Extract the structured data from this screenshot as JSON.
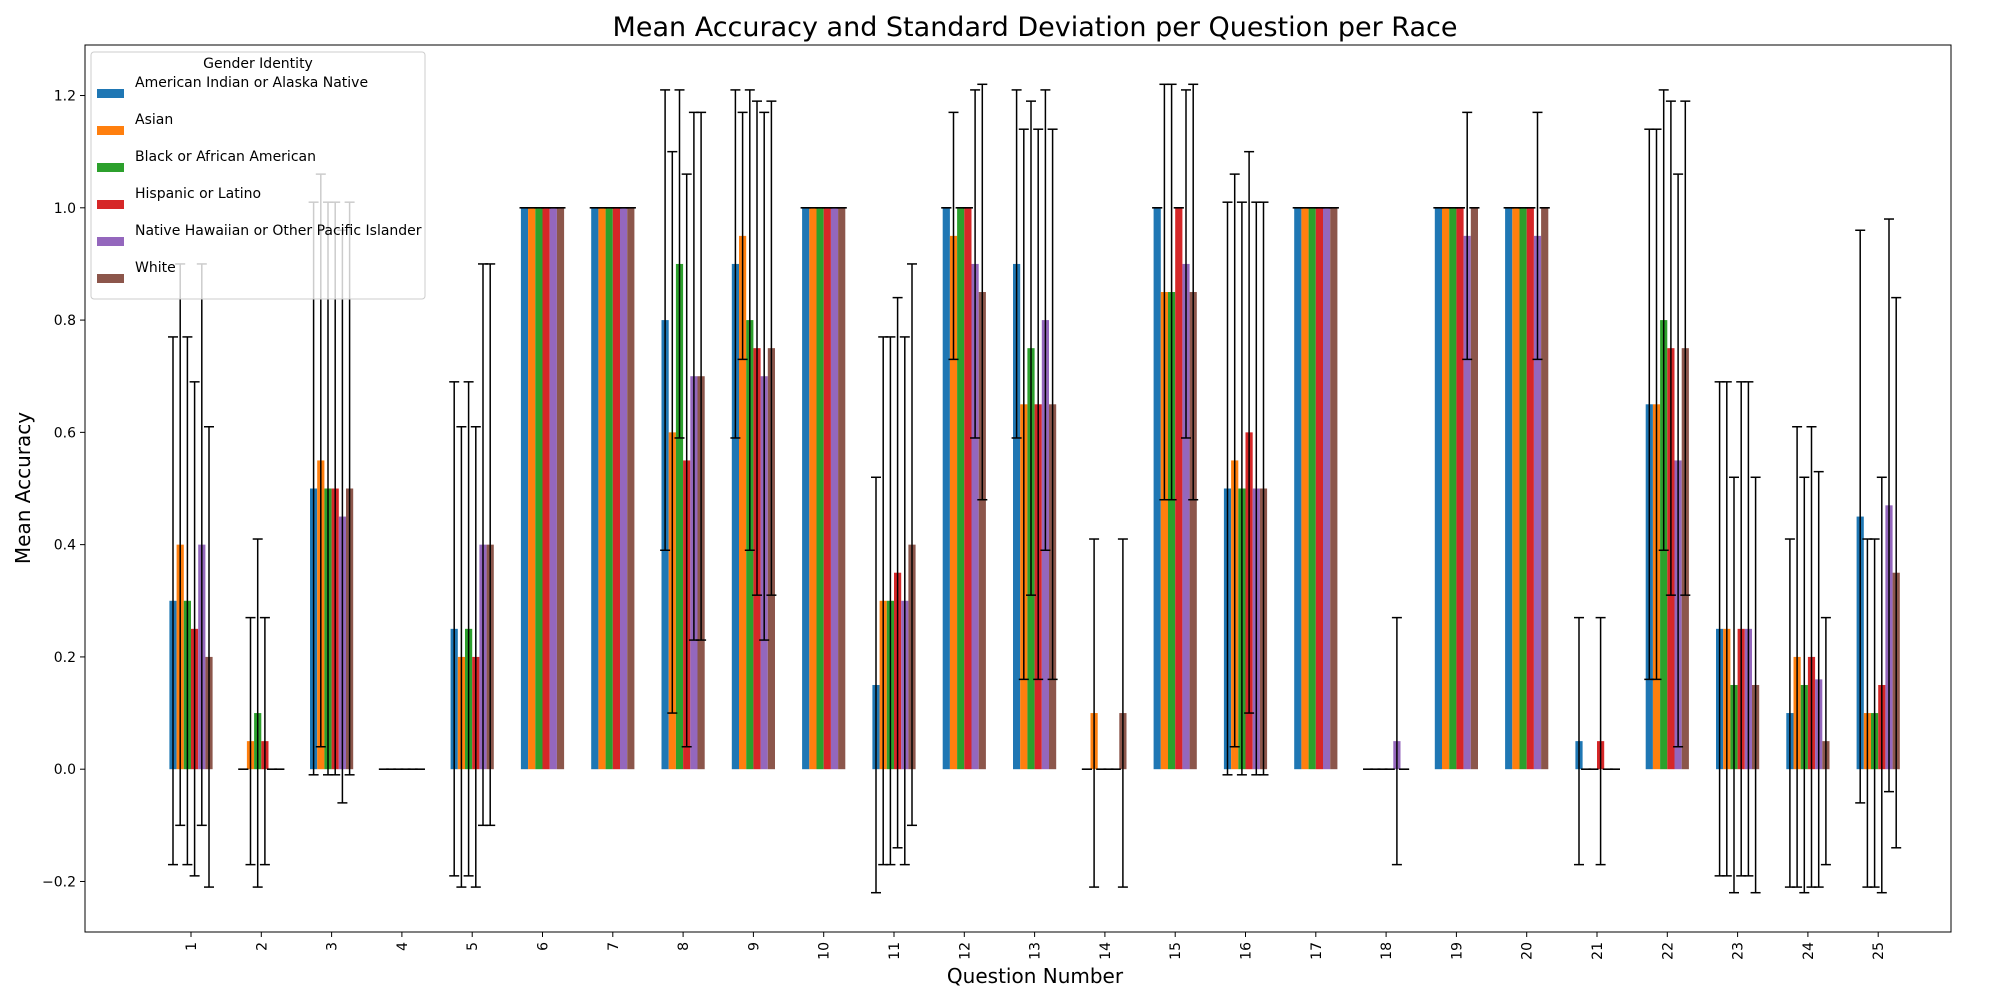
{
  "chart_data": {
    "type": "bar",
    "title": "Mean Accuracy and Standard Deviation per Question per Race",
    "xlabel": "Question Number",
    "ylabel": "Mean Accuracy",
    "ylim": [
      -0.29,
      1.29
    ],
    "yticks": [
      -0.2,
      0.0,
      0.2,
      0.4,
      0.6,
      0.8,
      1.0,
      1.2
    ],
    "ytick_labels": [
      "−0.2",
      "0.0",
      "0.2",
      "0.4",
      "0.6",
      "0.8",
      "1.0",
      "1.2"
    ],
    "categories": [
      "1",
      "2",
      "3",
      "4",
      "5",
      "6",
      "7",
      "8",
      "9",
      "10",
      "11",
      "12",
      "13",
      "14",
      "15",
      "16",
      "17",
      "18",
      "19",
      "20",
      "21",
      "22",
      "23",
      "24",
      "25"
    ],
    "grid": false,
    "legend": {
      "title": "Gender Identity",
      "position": "top-left"
    },
    "series": [
      {
        "name": "American Indian or Alaska Native",
        "color": "#1f77b4",
        "values": [
          0.3,
          0.0,
          0.5,
          0.0,
          0.25,
          1.0,
          1.0,
          0.8,
          0.9,
          1.0,
          0.15,
          1.0,
          0.9,
          0.0,
          1.0,
          0.5,
          1.0,
          0.0,
          1.0,
          1.0,
          0.05,
          0.65,
          0.25,
          0.1,
          0.45
        ],
        "errors": [
          0.47,
          0.0,
          0.51,
          0.0,
          0.44,
          0.0,
          0.0,
          0.41,
          0.31,
          0.0,
          0.37,
          0.0,
          0.31,
          0.0,
          0.0,
          0.51,
          0.0,
          0.0,
          0.0,
          0.0,
          0.22,
          0.49,
          0.44,
          0.31,
          0.51
        ]
      },
      {
        "name": "Asian",
        "color": "#ff7f0e",
        "values": [
          0.4,
          0.05,
          0.55,
          0.0,
          0.2,
          1.0,
          1.0,
          0.6,
          0.95,
          1.0,
          0.3,
          0.95,
          0.65,
          0.1,
          0.85,
          0.55,
          1.0,
          0.0,
          1.0,
          1.0,
          0.0,
          0.65,
          0.25,
          0.2,
          0.1
        ],
        "errors": [
          0.5,
          0.22,
          0.51,
          0.0,
          0.41,
          0.0,
          0.0,
          0.5,
          0.22,
          0.0,
          0.47,
          0.22,
          0.49,
          0.31,
          0.37,
          0.51,
          0.0,
          0.0,
          0.0,
          0.0,
          0.0,
          0.49,
          0.44,
          0.41,
          0.31
        ]
      },
      {
        "name": "Black or African American",
        "color": "#2ca02c",
        "values": [
          0.3,
          0.1,
          0.5,
          0.0,
          0.25,
          1.0,
          1.0,
          0.9,
          0.8,
          1.0,
          0.3,
          1.0,
          0.75,
          0.0,
          0.85,
          0.5,
          1.0,
          0.0,
          1.0,
          1.0,
          0.0,
          0.8,
          0.15,
          0.15,
          0.1
        ],
        "errors": [
          0.47,
          0.31,
          0.51,
          0.0,
          0.44,
          0.0,
          0.0,
          0.31,
          0.41,
          0.0,
          0.47,
          0.0,
          0.44,
          0.0,
          0.37,
          0.51,
          0.0,
          0.0,
          0.0,
          0.0,
          0.0,
          0.41,
          0.37,
          0.37,
          0.31
        ]
      },
      {
        "name": "Hispanic or Latino",
        "color": "#d62728",
        "values": [
          0.25,
          0.05,
          0.5,
          0.0,
          0.2,
          1.0,
          1.0,
          0.55,
          0.75,
          1.0,
          0.35,
          1.0,
          0.65,
          0.0,
          1.0,
          0.6,
          1.0,
          0.0,
          1.0,
          1.0,
          0.05,
          0.75,
          0.25,
          0.2,
          0.15
        ],
        "errors": [
          0.44,
          0.22,
          0.51,
          0.0,
          0.41,
          0.0,
          0.0,
          0.51,
          0.44,
          0.0,
          0.49,
          0.0,
          0.49,
          0.0,
          0.0,
          0.5,
          0.0,
          0.0,
          0.0,
          0.0,
          0.22,
          0.44,
          0.44,
          0.41,
          0.37
        ]
      },
      {
        "name": "Native Hawaiian or Other Pacific Islander",
        "color": "#9467bd",
        "values": [
          0.4,
          0.0,
          0.45,
          0.0,
          0.4,
          1.0,
          1.0,
          0.7,
          0.7,
          1.0,
          0.3,
          0.9,
          0.8,
          0.0,
          0.9,
          0.5,
          1.0,
          0.05,
          0.95,
          0.95,
          0.0,
          0.55,
          0.25,
          0.16,
          0.47
        ],
        "errors": [
          0.5,
          0.0,
          0.51,
          0.0,
          0.5,
          0.0,
          0.0,
          0.47,
          0.47,
          0.0,
          0.47,
          0.31,
          0.41,
          0.0,
          0.31,
          0.51,
          0.0,
          0.22,
          0.22,
          0.22,
          0.0,
          0.51,
          0.44,
          0.37,
          0.51
        ]
      },
      {
        "name": "White",
        "color": "#8c564b",
        "values": [
          0.2,
          0.0,
          0.5,
          0.0,
          0.4,
          1.0,
          1.0,
          0.7,
          0.75,
          1.0,
          0.4,
          0.85,
          0.65,
          0.1,
          0.85,
          0.5,
          1.0,
          0.0,
          1.0,
          1.0,
          0.0,
          0.75,
          0.15,
          0.05,
          0.35
        ],
        "errors": [
          0.41,
          0.0,
          0.51,
          0.0,
          0.5,
          0.0,
          0.0,
          0.47,
          0.44,
          0.0,
          0.5,
          0.37,
          0.49,
          0.31,
          0.37,
          0.51,
          0.0,
          0.0,
          0.0,
          0.0,
          0.0,
          0.44,
          0.37,
          0.22,
          0.49
        ]
      }
    ]
  }
}
